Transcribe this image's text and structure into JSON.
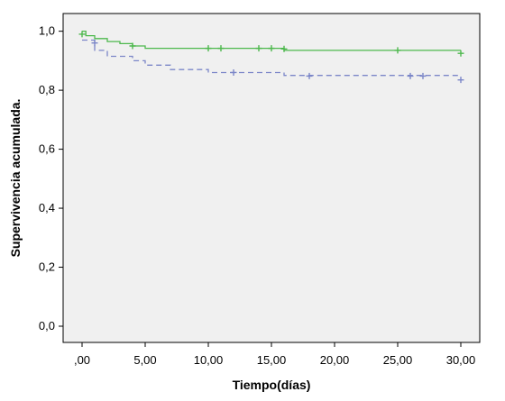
{
  "chart_data": {
    "type": "line",
    "subtype": "kaplan-meier-step",
    "xlabel": "Tiempo(días)",
    "ylabel": "Supervivencia acumulada.",
    "xlim": [
      -1.5,
      31.5
    ],
    "ylim": [
      -0.055,
      1.06
    ],
    "x_ticks": [
      0,
      5,
      10,
      15,
      20,
      25,
      30
    ],
    "x_tick_labels": [
      ",00",
      "5,00",
      "10,00",
      "15,00",
      "20,00",
      "25,00",
      "30,00"
    ],
    "y_ticks": [
      0,
      0.2,
      0.4,
      0.6,
      0.8,
      1.0
    ],
    "y_tick_labels": [
      "0,0",
      "0,2",
      "0,4",
      "0,6",
      "0,8",
      "1,0"
    ],
    "grid": false,
    "plot_background": "#F0F0F0",
    "series": [
      {
        "color": "#4DB84D",
        "dash": "solid",
        "steps": [
          [
            0,
            1.0
          ],
          [
            0.3,
            0.985
          ],
          [
            1,
            0.975
          ],
          [
            2,
            0.965
          ],
          [
            3,
            0.958
          ],
          [
            4,
            0.95
          ],
          [
            5,
            0.942
          ],
          [
            16,
            0.935
          ],
          [
            30,
            0.935
          ]
        ],
        "censored": [
          [
            0,
            0.99
          ],
          [
            4,
            0.95
          ],
          [
            10,
            0.942
          ],
          [
            11,
            0.942
          ],
          [
            14,
            0.942
          ],
          [
            15,
            0.942
          ],
          [
            16,
            0.94
          ],
          [
            25,
            0.935
          ],
          [
            30,
            0.925
          ]
        ]
      },
      {
        "color": "#7B86C8",
        "dash": "dashed",
        "steps": [
          [
            0,
            0.97
          ],
          [
            1,
            0.935
          ],
          [
            2,
            0.915
          ],
          [
            4,
            0.9
          ],
          [
            5,
            0.885
          ],
          [
            7,
            0.87
          ],
          [
            10,
            0.86
          ],
          [
            16,
            0.85
          ],
          [
            30,
            0.85
          ]
        ],
        "censored": [
          [
            1,
            0.96
          ],
          [
            12,
            0.86
          ],
          [
            18,
            0.848
          ],
          [
            26,
            0.848
          ],
          [
            27,
            0.848
          ],
          [
            30,
            0.835
          ]
        ]
      }
    ]
  }
}
